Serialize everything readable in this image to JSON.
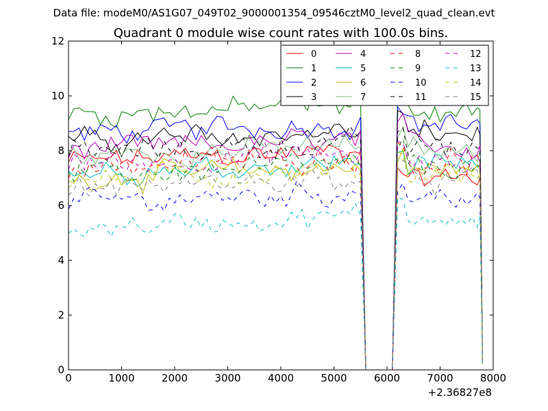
{
  "chart_data": {
    "type": "line",
    "suptitle": "Data file: modeM0/AS1G07_049T02_9000001354_09546cztM0_level2_quad_clean.evt",
    "title": "Quadrant 0 module wise count rates with 100.0s bins.",
    "xlabel": "",
    "ylabel": "",
    "xlim": [
      0,
      8000
    ],
    "ylim": [
      0,
      12
    ],
    "x_offset_label": "+2.36827e8",
    "x_ticks": [
      0,
      1000,
      2000,
      3000,
      4000,
      5000,
      6000,
      7000,
      8000
    ],
    "x_tick_labels": [
      "0",
      "1000",
      "2000",
      "3000",
      "4000",
      "5000",
      "6000",
      "7000",
      "8000"
    ],
    "y_ticks": [
      0,
      2,
      4,
      6,
      8,
      10,
      12
    ],
    "y_tick_labels": [
      "0",
      "2",
      "4",
      "6",
      "8",
      "10",
      "12"
    ],
    "grid": false,
    "legend_position": "upper right",
    "legend_columns": 4,
    "bin_width": 100.0,
    "segments": [
      {
        "start": 0,
        "end": 5500,
        "dips_to": 5600
      },
      {
        "start": 6100,
        "end": 7800
      }
    ],
    "series": [
      {
        "name": "0",
        "color": "#ff0000",
        "dash": "solid",
        "mean": 7.6,
        "dip_level": 7.0
      },
      {
        "name": "1",
        "color": "#008000",
        "dash": "solid",
        "mean": 9.3,
        "dip_level": 9.5
      },
      {
        "name": "2",
        "color": "#0000ff",
        "dash": "solid",
        "mean": 8.6,
        "dip_level": 9.0
      },
      {
        "name": "3",
        "color": "#000000",
        "dash": "solid",
        "mean": 8.3,
        "dip_level": 8.6
      },
      {
        "name": "4",
        "color": "#bf00bf",
        "dash": "solid",
        "mean": 8.0,
        "dip_level": 8.2
      },
      {
        "name": "5",
        "color": "#00bfbf",
        "dash": "solid",
        "mean": 7.2,
        "dip_level": 7.5
      },
      {
        "name": "6",
        "color": "#bfbf00",
        "dash": "solid",
        "mean": 7.0,
        "dip_level": 7.3
      },
      {
        "name": "7",
        "color": "#7fbf7f",
        "dash": "solid",
        "mean": 7.8,
        "dip_level": 8.0
      },
      {
        "name": "8",
        "color": "#ff0000",
        "dash": "dashed",
        "mean": 7.4,
        "dip_level": 7.6
      },
      {
        "name": "9",
        "color": "#008000",
        "dash": "dashed",
        "mean": 7.1,
        "dip_level": 7.4
      },
      {
        "name": "10",
        "color": "#0000ff",
        "dash": "dashed",
        "mean": 6.1,
        "dip_level": 6.3
      },
      {
        "name": "11",
        "color": "#000000",
        "dash": "dashed",
        "mean": 7.9,
        "dip_level": 8.1
      },
      {
        "name": "12",
        "color": "#bf00bf",
        "dash": "dashed",
        "mean": 7.5,
        "dip_level": 7.5
      },
      {
        "name": "13",
        "color": "#00bfbf",
        "dash": "dashed",
        "mean": 5.2,
        "dip_level": 5.6
      },
      {
        "name": "14",
        "color": "#bfbf00",
        "dash": "dashed",
        "mean": 6.9,
        "dip_level": 7.2
      },
      {
        "name": "15",
        "color": "#7f7f7f",
        "dash": "dashed",
        "mean": 6.6,
        "dip_level": 6.9
      }
    ]
  }
}
